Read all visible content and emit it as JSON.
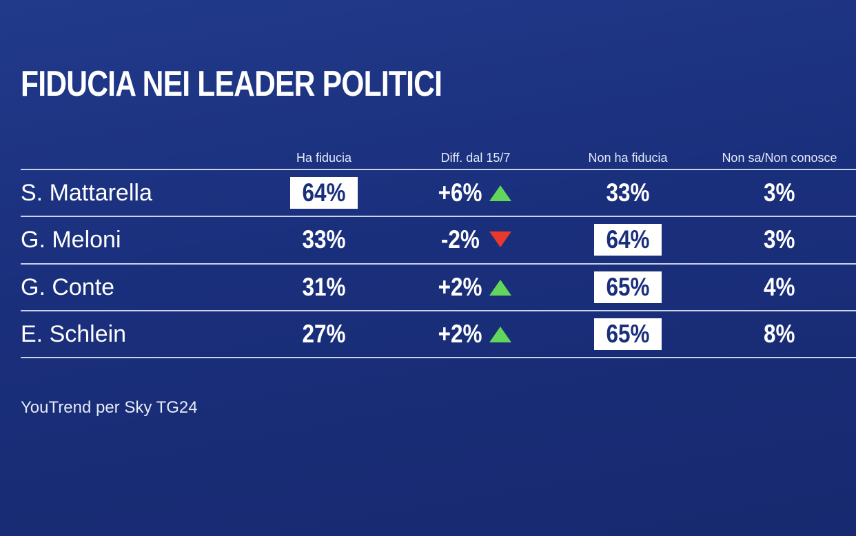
{
  "title": "FIDUCIA NEI LEADER POLITICI",
  "table": {
    "columns": [
      "Ha fiducia",
      "Diff. dal 15/7",
      "Non ha fiducia",
      "Non sa/Non conosce"
    ],
    "rows": [
      {
        "name": "S. Mattarella",
        "cells": [
          "64%",
          "+6%",
          "33%",
          "3%"
        ]
      },
      {
        "name": "G. Meloni",
        "cells": [
          "33%",
          "-2%",
          "64%",
          "3%"
        ]
      },
      {
        "name": "G. Conte",
        "cells": [
          "31%",
          "+2%",
          "65%",
          "4%"
        ]
      },
      {
        "name": "E. Schlein",
        "cells": [
          "27%",
          "+2%",
          "65%",
          "8%"
        ]
      }
    ]
  },
  "source": "YouTrend per Sky TG24"
}
